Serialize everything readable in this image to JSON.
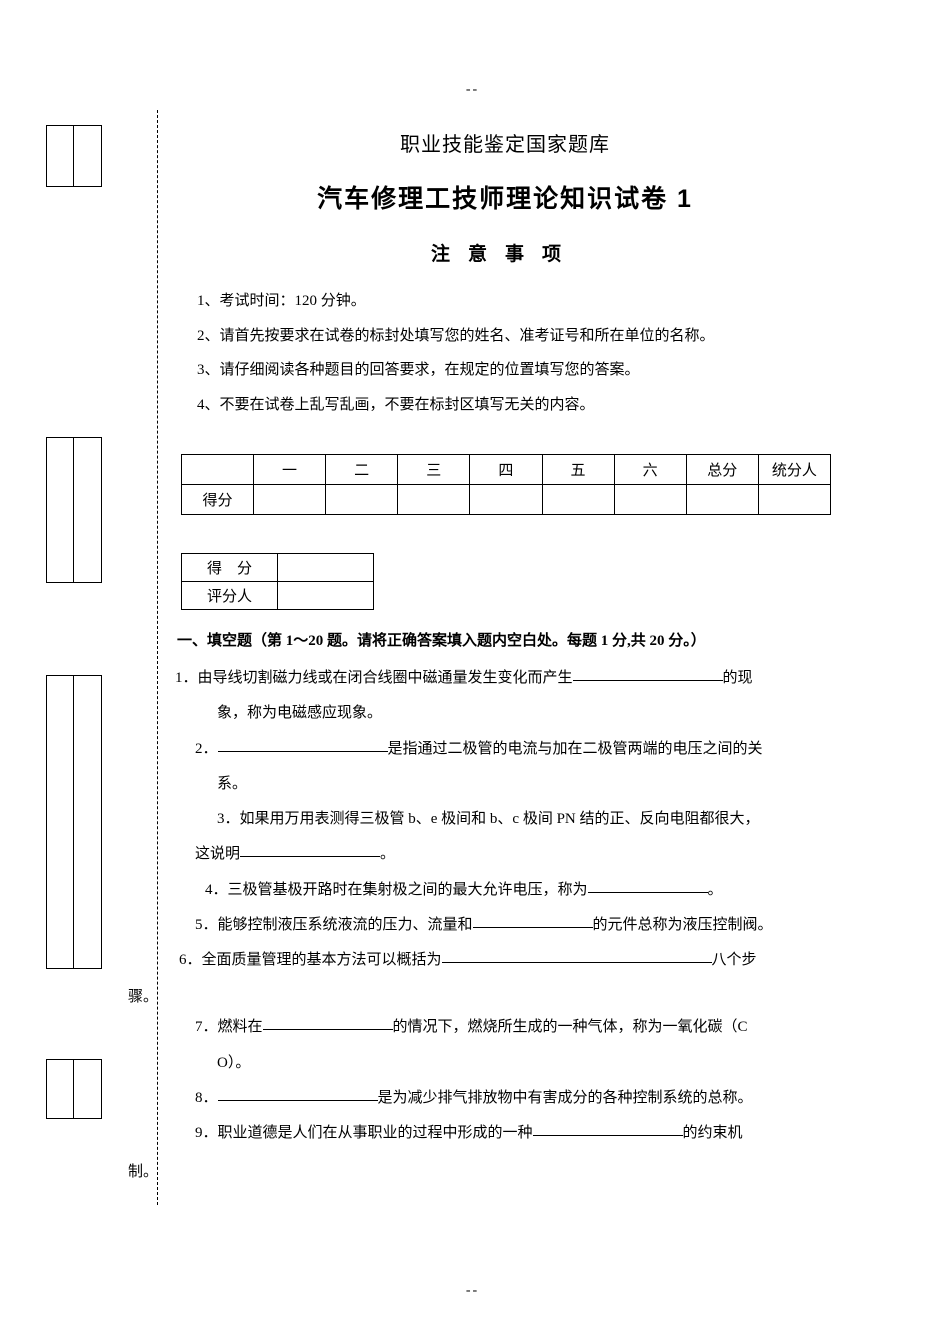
{
  "marker": "--",
  "header": {
    "line1": "职业技能鉴定国家题库",
    "line2": "汽车修理工技师理论知识试卷 1",
    "line3": "注意事项"
  },
  "instructions": [
    "1、考试时间：120 分钟。",
    "2、请首先按要求在试卷的标封处填写您的姓名、准考证号和所在单位的名称。",
    "3、请仔细阅读各种题目的回答要求，在规定的位置填写您的答案。",
    "4、不要在试卷上乱写乱画，不要在标封区填写无关的内容。"
  ],
  "score_table": {
    "row_label": "得分",
    "cols": [
      "一",
      "二",
      "三",
      "四",
      "五",
      "六",
      "总分",
      "统分人"
    ]
  },
  "mini_table": {
    "r1": "得　分",
    "r2": "评分人"
  },
  "section1_title": "一、填空题（第 1～20 题。请将正确答案填入题内空白处。每题 1 分,共 20 分。）",
  "q1_a": "1．由导线切割磁力线或在闭合线圈中磁通量发生变化而产生",
  "q1_b": "的现",
  "q1_c": "象，称为电磁感应现象。",
  "q2_a": "2．",
  "q2_b": "是指通过二极管的电流与加在二极管两端的电压之间的关",
  "q2_c": "系。",
  "q3_a": "3．如果用万用表测得三极管 b、e 极间和 b、c 极间 PN 结的正、反向电阻都很大，",
  "q3_b": "这说明",
  "q3_c": "。",
  "q4_a": "4．三极管基极开路时在集射极之间的最大允许电压，称为",
  "q4_b": "。",
  "q5_a": "5．能够控制液压系统液流的压力、流量和",
  "q5_b": "的元件总称为液压控制阀。",
  "q6_a": "6．全面质量管理的基本方法可以概括为",
  "q6_b": "八个步",
  "q6_c": "骤。",
  "q7_a": "7．燃料在",
  "q7_b": "的情况下，燃烧所生成的一种气体，称为一氧化碳（C",
  "q7_c": "O）。",
  "q8_a": "8．",
  "q8_b": "是为减少排气排放物中有害成分的各种控制系统的总称。",
  "q9_a": "9．职业道德是人们在从事职业的过程中形成的一种",
  "q9_b": "的约束机",
  "q9_c": "制。",
  "blanks": {
    "q1": 150,
    "q2": 170,
    "q3": 140,
    "q4": 120,
    "q5": 120,
    "q6": 270,
    "q7": 130,
    "q8": 160,
    "q9": 150
  },
  "colors": {
    "text": "#000000",
    "bg": "#ffffff"
  }
}
